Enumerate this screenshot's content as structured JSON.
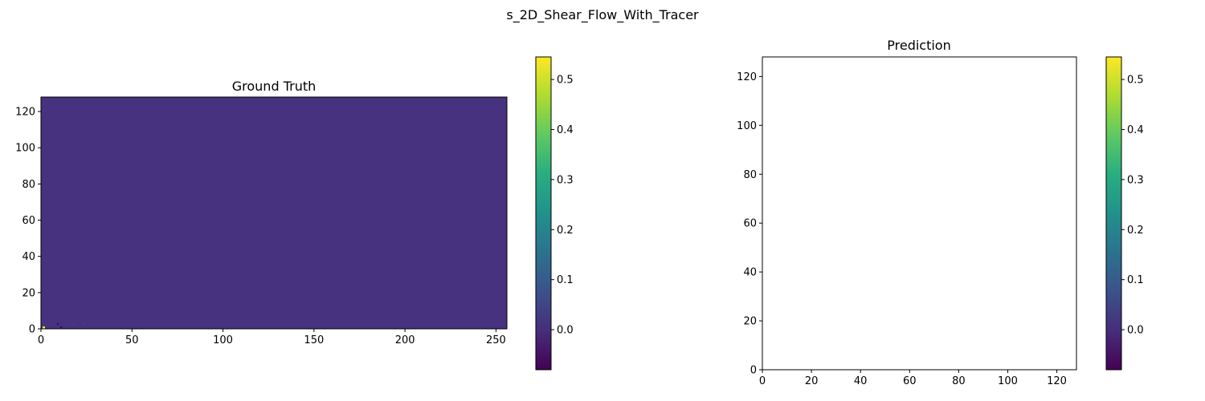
{
  "figure": {
    "title": "s_2D_Shear_Flow_With_Tracer"
  },
  "colors": {
    "field": "#46327e",
    "hot_spot": "#fde725",
    "dark_spot": "#440154"
  },
  "chart_data": [
    {
      "type": "heatmap",
      "title": "Ground Truth",
      "xlim": [
        0,
        256
      ],
      "ylim": [
        0,
        128
      ],
      "xticks": [
        0,
        50,
        100,
        150,
        200,
        250
      ],
      "yticks": [
        0,
        20,
        40,
        60,
        80,
        100,
        120
      ],
      "xtick_labels": [
        "0",
        "50",
        "100",
        "150",
        "200",
        "250"
      ],
      "ytick_labels": [
        "0",
        "20",
        "40",
        "60",
        "80",
        "100",
        "120"
      ],
      "colormap": "viridis",
      "field_value": 0.0,
      "colorbar": {
        "min": -0.08,
        "max": 0.545,
        "ticks": [
          0.0,
          0.1,
          0.2,
          0.3,
          0.4,
          0.5
        ],
        "tick_labels": [
          "0.0",
          "0.1",
          "0.2",
          "0.3",
          "0.4",
          "0.5"
        ]
      }
    },
    {
      "type": "heatmap",
      "title": "Prediction",
      "xlim": [
        0,
        128
      ],
      "ylim": [
        0,
        128
      ],
      "xticks": [
        0,
        20,
        40,
        60,
        80,
        100,
        120
      ],
      "yticks": [
        0,
        20,
        40,
        60,
        80,
        100,
        120
      ],
      "xtick_labels": [
        "0",
        "20",
        "40",
        "60",
        "80",
        "100",
        "120"
      ],
      "ytick_labels": [
        "0",
        "20",
        "40",
        "60",
        "80",
        "100",
        "120"
      ],
      "colormap": "viridis",
      "field_value": null,
      "colorbar": {
        "min": -0.08,
        "max": 0.545,
        "ticks": [
          0.0,
          0.1,
          0.2,
          0.3,
          0.4,
          0.5
        ],
        "tick_labels": [
          "0.0",
          "0.1",
          "0.2",
          "0.3",
          "0.4",
          "0.5"
        ]
      }
    }
  ]
}
